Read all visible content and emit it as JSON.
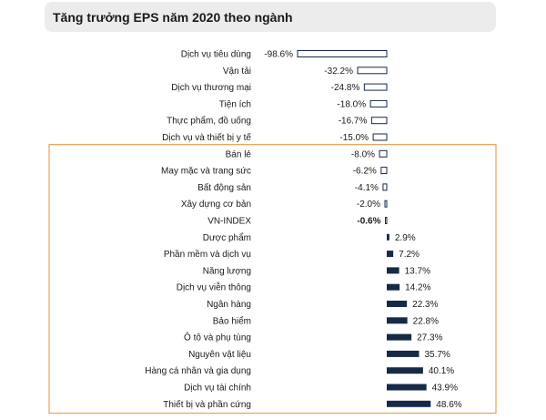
{
  "chart_data": {
    "type": "bar",
    "orientation": "horizontal",
    "title": "Tăng trưởng EPS năm 2020 theo ngành",
    "xlim": [
      -100,
      50
    ],
    "grid": false,
    "legend": "none",
    "colors": {
      "bar": "#162a47",
      "negative_fill": "#ffffff",
      "highlight": "#f0a050"
    },
    "categories": [
      "Dịch vụ tiêu dùng",
      "Vận tải",
      "Dịch vụ thương mại",
      "Tiện ích",
      "Thực phẩm, đồ uống",
      "Dịch vụ và thiết bị y tế",
      "Bán lẻ",
      "May mặc và trang sức",
      "Bất động sản",
      "Xây dựng cơ bản",
      "VN-INDEX",
      "Dược phẩm",
      "Phần mềm và dịch vụ",
      "Năng lượng",
      "Dịch vụ viễn thông",
      "Ngân hàng",
      "Bảo hiểm",
      "Ô tô và phụ tùng",
      "Nguyên vật liệu",
      "Hàng cá nhân và gia dụng",
      "Dịch vụ tài chính",
      "Thiết bị và phần cứng"
    ],
    "values": [
      -98.6,
      -32.2,
      -24.8,
      -18.0,
      -16.7,
      -15.0,
      -8.0,
      -6.2,
      -4.1,
      -2.0,
      -0.6,
      2.9,
      7.2,
      13.7,
      14.2,
      22.3,
      22.8,
      27.3,
      35.7,
      40.1,
      43.9,
      48.6
    ],
    "value_labels": [
      "-98.6%",
      "-32.2%",
      "-24.8%",
      "-18.0%",
      "-16.7%",
      "-15.0%",
      "-8.0%",
      "-6.2%",
      "-4.1%",
      "-2.0%",
      "-0.6%",
      "2.9%",
      "7.2%",
      "13.7%",
      "14.2%",
      "22.3%",
      "22.8%",
      "27.3%",
      "35.7%",
      "40.1%",
      "43.9%",
      "48.6%"
    ],
    "highlight_category": "VN-INDEX",
    "highlight_box_categories": [
      "Bán lẻ",
      "Thiết bị và phần cứng"
    ]
  }
}
